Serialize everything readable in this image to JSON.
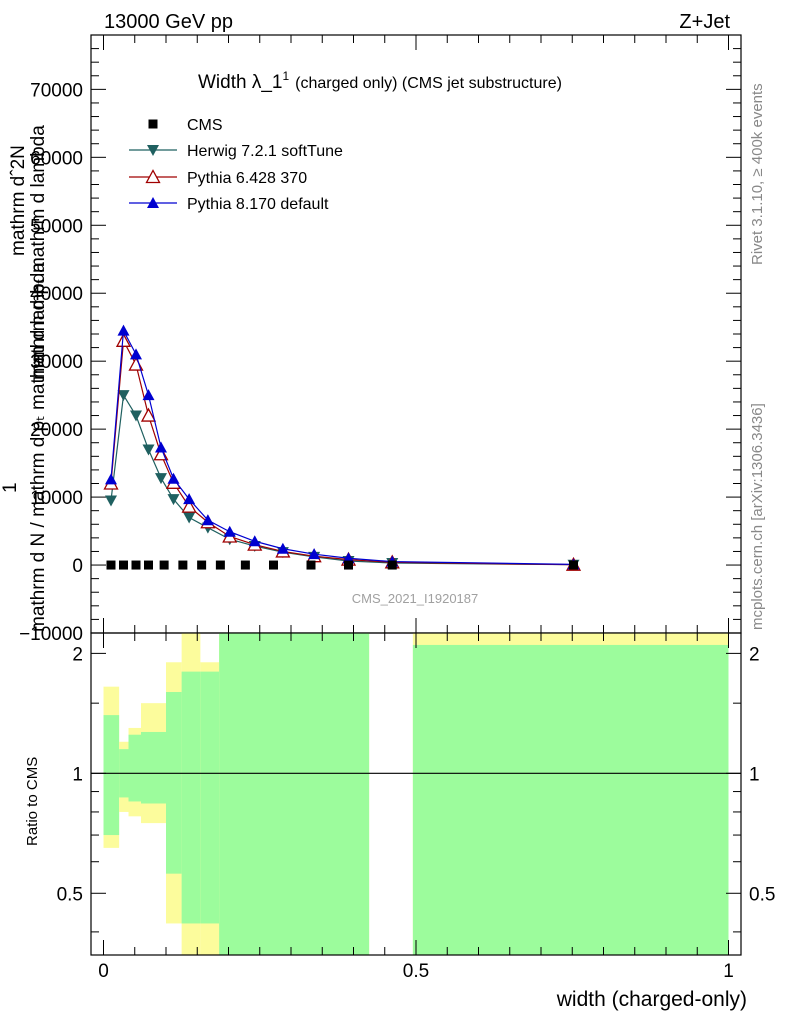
{
  "header": {
    "left": "13000 GeV pp",
    "right": "Z+Jet"
  },
  "title": {
    "main": "Width λ_1",
    "sup": "1",
    "sub": "(charged only) (CMS jet substructure)"
  },
  "side": {
    "rivet": "Rivet 3.1.10, ≥ 400k events",
    "mcplots": "mcplots.cern.ch [arXiv:1306.3436]"
  },
  "watermark": "CMS_2021_I1920187",
  "ylabel_lines": [
    "mathrm dˆ2N",
    "mathrm d pₜ mathrm d lambda",
    "1",
    "mathrm d N / mathrm d pₜ mathrm d lambda"
  ],
  "ratio_ylabel": "Ratio to CMS",
  "xlabel": "width (charged-only)",
  "colors": {
    "cms": "#000000",
    "herwig": "#1f6060",
    "pythia6": "#a00000",
    "pythia8": "#0000d0",
    "band_inner": "#9cfc9c",
    "band_outer": "#fcfc9c"
  },
  "chart_data": [
    {
      "type": "scatter",
      "title": "Width λ_1 (charged only) (CMS jet substructure)",
      "xlabel": "width (charged-only)",
      "xlim": [
        -0.02,
        1.02
      ],
      "ylim": [
        -10000,
        78000
      ],
      "yticks": [
        -10000,
        0,
        10000,
        20000,
        30000,
        40000,
        50000,
        60000,
        70000
      ],
      "yticklabels": [
        "−10000",
        "0",
        "10000",
        "20000",
        "30000",
        "40000",
        "50000",
        "60000",
        "70000"
      ],
      "legend": [
        "CMS",
        "Herwig 7.2.1 softTune",
        "Pythia 6.428 370",
        "Pythia 8.170 default"
      ],
      "legend_position": "top-left",
      "series": [
        {
          "name": "CMS",
          "marker": "square",
          "x": [
            0.012,
            0.032,
            0.052,
            0.072,
            0.097,
            0.127,
            0.157,
            0.187,
            0.227,
            0.272,
            0.332,
            0.392,
            0.462,
            0.752
          ],
          "y": [
            0,
            0,
            0,
            0,
            0,
            0,
            0,
            0,
            0,
            0,
            0,
            0,
            0,
            0
          ]
        },
        {
          "name": "Herwig 7.2.1 softTune",
          "marker": "triangle-down",
          "x": [
            0.012,
            0.032,
            0.052,
            0.072,
            0.092,
            0.112,
            0.137,
            0.167,
            0.202,
            0.242,
            0.287,
            0.337,
            0.392,
            0.462,
            0.752
          ],
          "y": [
            9500,
            25000,
            22000,
            17000,
            12800,
            9700,
            7000,
            5500,
            3800,
            2800,
            1900,
            1200,
            600,
            300,
            50
          ]
        },
        {
          "name": "Pythia 6.428 370",
          "marker": "triangle-open",
          "x": [
            0.012,
            0.032,
            0.052,
            0.072,
            0.092,
            0.112,
            0.137,
            0.167,
            0.202,
            0.242,
            0.287,
            0.337,
            0.392,
            0.462,
            0.752
          ],
          "y": [
            12000,
            33000,
            29500,
            22000,
            16300,
            12100,
            8600,
            6300,
            4200,
            3000,
            2000,
            1300,
            800,
            400,
            50
          ]
        },
        {
          "name": "Pythia 8.170 default",
          "marker": "triangle-up",
          "x": [
            0.012,
            0.032,
            0.052,
            0.072,
            0.092,
            0.112,
            0.137,
            0.167,
            0.202,
            0.242,
            0.287,
            0.337,
            0.392,
            0.462,
            0.752
          ],
          "y": [
            12600,
            34500,
            31000,
            25000,
            17300,
            12700,
            9700,
            6600,
            4900,
            3500,
            2400,
            1600,
            1000,
            500,
            100
          ]
        }
      ]
    },
    {
      "type": "area",
      "title": "Ratio to CMS",
      "xlabel": "width (charged-only)",
      "ylabel": "Ratio to CMS",
      "xlim": [
        -0.02,
        1.02
      ],
      "ylim": [
        0.35,
        2.25
      ],
      "yticks": [
        0.5,
        1,
        2
      ],
      "yticklabels": [
        "0.5",
        "1",
        "2"
      ],
      "xticks": [
        0,
        0.5,
        1
      ],
      "xticklabels": [
        "0",
        "0.5",
        "1"
      ],
      "reference_line": 1,
      "bins": [
        {
          "x0": 0.0,
          "x1": 0.025,
          "inner": [
            0.7,
            1.4
          ],
          "outer": [
            0.65,
            1.65
          ]
        },
        {
          "x0": 0.025,
          "x1": 0.04,
          "inner": [
            0.87,
            1.15
          ],
          "outer": [
            0.8,
            1.2
          ]
        },
        {
          "x0": 0.04,
          "x1": 0.06,
          "inner": [
            0.85,
            1.25
          ],
          "outer": [
            0.78,
            1.3
          ]
        },
        {
          "x0": 0.06,
          "x1": 0.1,
          "inner": [
            0.84,
            1.27
          ],
          "outer": [
            0.75,
            1.5
          ]
        },
        {
          "x0": 0.1,
          "x1": 0.125,
          "inner": [
            0.56,
            1.6
          ],
          "outer": [
            0.42,
            1.9
          ]
        },
        {
          "x0": 0.125,
          "x1": 0.155,
          "inner": [
            0.42,
            1.8
          ],
          "outer": [
            0.35,
            2.35
          ]
        },
        {
          "x0": 0.155,
          "x1": 0.185,
          "inner": [
            0.42,
            1.8
          ],
          "outer": [
            0.35,
            1.9
          ]
        },
        {
          "x0": 0.185,
          "x1": 0.425,
          "inner": [
            0.35,
            2.35
          ],
          "outer": [
            0.35,
            2.35
          ]
        },
        {
          "x0": 0.495,
          "x1": 1.0,
          "inner": [
            0.35,
            2.1
          ],
          "outer": [
            0.35,
            2.35
          ]
        }
      ]
    }
  ]
}
